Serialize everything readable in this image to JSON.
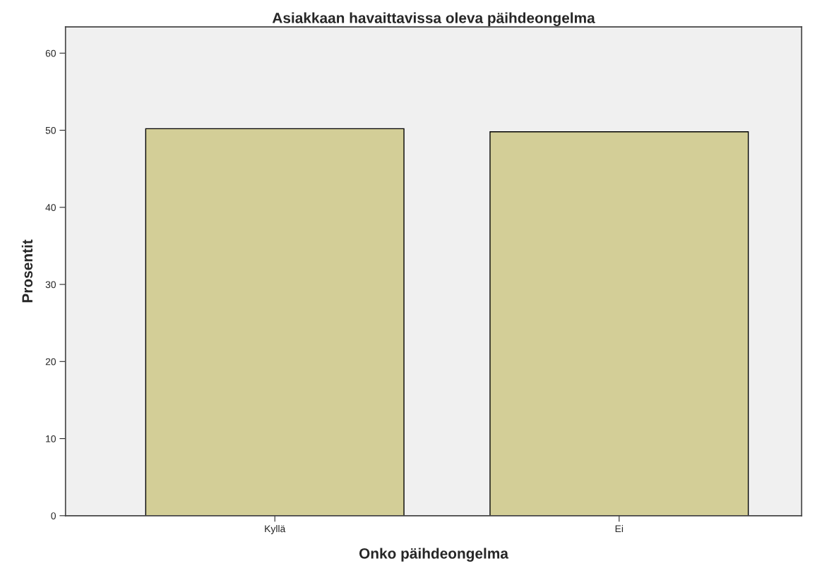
{
  "chart_data": {
    "type": "bar",
    "title": "Asiakkaan havaittavissa oleva päihdeongelma",
    "xlabel": "Onko päihdeongelma",
    "ylabel": "Prosentit",
    "categories": [
      "Kyllä",
      "Ei"
    ],
    "values": [
      50.2,
      49.8
    ],
    "color": "#d3ce97",
    "ylim": [
      0,
      63.4
    ],
    "yticks": [
      0,
      10,
      20,
      30,
      40,
      50,
      60
    ],
    "grid": false,
    "legend": false
  }
}
